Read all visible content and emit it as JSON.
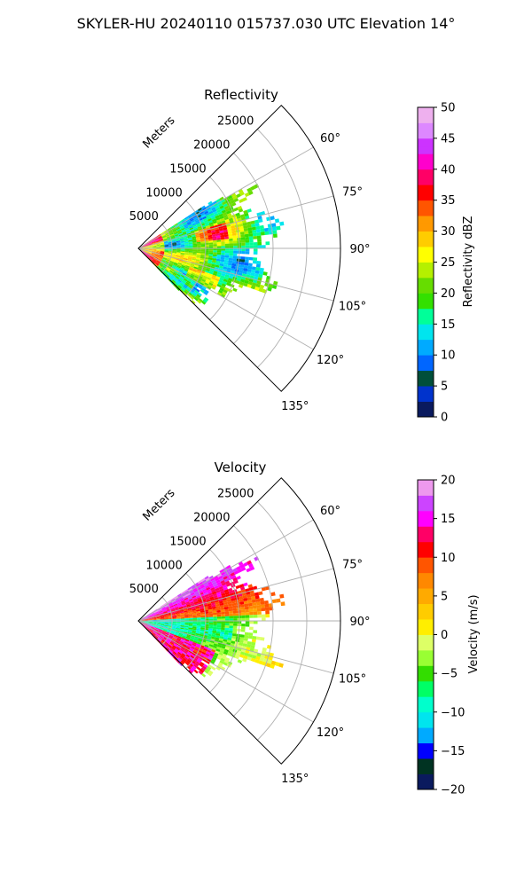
{
  "figure_title": "SKYLER-HU  20240110  015737.030 UTC Elevation 14°",
  "chart_data": [
    {
      "type": "polar_sector_ppi",
      "title": "Reflectivity",
      "range_label": "Meters",
      "range_ticks": [
        "5000",
        "10000",
        "15000",
        "20000",
        "25000"
      ],
      "range_tick_values": [
        5000,
        10000,
        15000,
        20000,
        25000
      ],
      "range_max": 30000,
      "azimuth_limits_deg": [
        45,
        135
      ],
      "azimuth_ticks": [
        "60°",
        "75°",
        "90°",
        "105°",
        "120°",
        "135°"
      ],
      "azimuth_tick_values": [
        60,
        75,
        90,
        105,
        120,
        135
      ],
      "colorbar": {
        "label": "Reflectivity dBZ",
        "min": 0,
        "max": 50,
        "ticks": [
          "0",
          "5",
          "10",
          "15",
          "20",
          "25",
          "30",
          "35",
          "40",
          "45",
          "50"
        ],
        "tick_values": [
          0,
          5,
          10,
          15,
          20,
          25,
          30,
          35,
          40,
          45,
          50
        ]
      }
    },
    {
      "type": "polar_sector_ppi",
      "title": "Velocity",
      "range_label": "Meters",
      "range_ticks": [
        "5000",
        "10000",
        "15000",
        "20000",
        "25000"
      ],
      "range_tick_values": [
        5000,
        10000,
        15000,
        20000,
        25000
      ],
      "range_max": 30000,
      "azimuth_limits_deg": [
        45,
        135
      ],
      "azimuth_ticks": [
        "60°",
        "75°",
        "90°",
        "105°",
        "120°",
        "135°"
      ],
      "azimuth_tick_values": [
        60,
        75,
        90,
        105,
        120,
        135
      ],
      "colorbar": {
        "label": "Velocity (m/s)",
        "min": -20,
        "max": 20,
        "ticks": [
          "−20",
          "−15",
          "−10",
          "−5",
          "0",
          "5",
          "10",
          "15",
          "20"
        ],
        "tick_values": [
          -20,
          -15,
          -10,
          -5,
          0,
          5,
          10,
          15,
          20
        ]
      }
    }
  ]
}
